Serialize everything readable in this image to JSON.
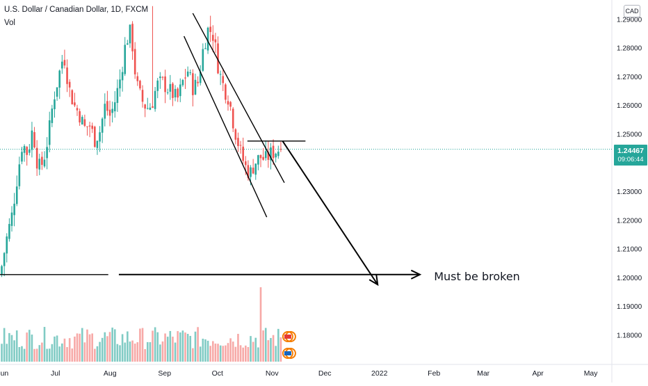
{
  "header": {
    "symbol_title": "U.S. Dollar / Canadian Dollar, 1D, FXCM",
    "indicator": "Vol",
    "currency_badge": "CAD"
  },
  "price_label": {
    "price": "1.24467",
    "countdown": "09:06:44",
    "color": "#26a69a"
  },
  "colors": {
    "up": "#26a69a",
    "down": "#ef5350",
    "vol_up": "#80cbc4",
    "vol_down": "#f7a9a7"
  },
  "chart_data": {
    "type": "candlestick",
    "y_axis": {
      "range": [
        1.176,
        1.2925
      ],
      "ticks": [
        "1.18000",
        "1.19000",
        "1.20000",
        "1.21000",
        "1.22000",
        "1.23000",
        "1.24000",
        "1.25000",
        "1.26000",
        "1.27000",
        "1.28000",
        "1.29000"
      ]
    },
    "x_axis": {
      "ticks": [
        {
          "label": "Jun",
          "day": 0
        },
        {
          "label": "Jul",
          "day": 30
        },
        {
          "label": "Aug",
          "day": 61
        },
        {
          "label": "Sep",
          "day": 92
        },
        {
          "label": "Oct",
          "day": 122
        },
        {
          "label": "Nov",
          "day": 153
        },
        {
          "label": "Dec",
          "day": 183
        },
        {
          "label": "2022",
          "day": 214
        },
        {
          "label": "Feb",
          "day": 245
        },
        {
          "label": "Mar",
          "day": 273
        },
        {
          "label": "Apr",
          "day": 304
        },
        {
          "label": "May",
          "day": 334
        }
      ],
      "range_days": [
        -1.5,
        346
      ]
    },
    "last_price": 1.24467,
    "close_path": [
      1.204,
      1.214,
      1.222,
      1.235,
      1.247,
      1.243,
      1.252,
      1.238,
      1.24,
      1.249,
      1.262,
      1.27,
      1.278,
      1.266,
      1.26,
      1.257,
      1.252,
      1.253,
      1.248,
      1.251,
      1.26,
      1.256,
      1.262,
      1.27,
      1.282,
      1.286,
      1.268,
      1.262,
      1.259,
      1.26,
      1.267,
      1.268,
      1.266,
      1.264,
      1.262,
      1.268,
      1.272,
      1.266,
      1.268,
      1.28,
      1.287,
      1.284,
      1.272,
      1.266,
      1.262,
      1.252,
      1.245,
      1.239,
      1.236,
      1.24,
      1.242,
      1.241,
      1.243,
      1.244,
      1.245
    ],
    "annotations": [
      {
        "type": "channel_line",
        "from": {
          "day": 108,
          "price": 1.292
        },
        "to": {
          "day": 160,
          "price": 1.233
        }
      },
      {
        "type": "channel_line",
        "from": {
          "day": 103,
          "price": 1.284
        },
        "to": {
          "day": 150,
          "price": 1.221
        }
      },
      {
        "type": "horizontal_line",
        "from": {
          "day": 139,
          "price": 1.2475
        },
        "to": {
          "day": 172,
          "price": 1.2475
        }
      },
      {
        "type": "arrow",
        "from": {
          "day": 159,
          "price": 1.2475
        },
        "to": {
          "day": 213,
          "price": 1.1975
        }
      },
      {
        "type": "horizontal_line",
        "from": {
          "day": -1.5,
          "price": 1.201
        },
        "to": {
          "day": 60,
          "price": 1.201
        }
      },
      {
        "type": "arrow",
        "from": {
          "day": 66,
          "price": 1.201
        },
        "to": {
          "day": 237,
          "price": 1.201
        }
      },
      {
        "type": "text",
        "text": "Must be broken",
        "at": {
          "day": 245,
          "price": 1.2005
        }
      }
    ]
  }
}
